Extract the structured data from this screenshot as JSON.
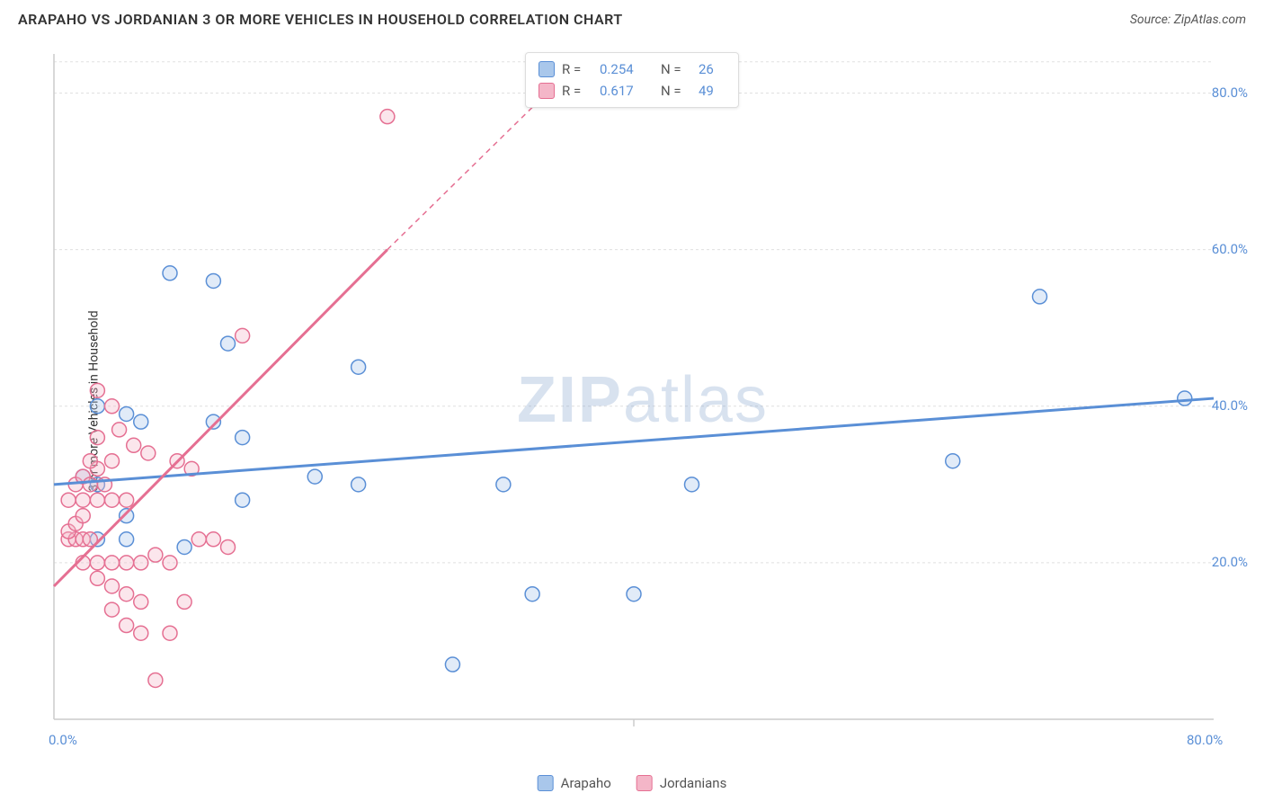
{
  "title": "ARAPAHO VS JORDANIAN 3 OR MORE VEHICLES IN HOUSEHOLD CORRELATION CHART",
  "source": "Source: ZipAtlas.com",
  "y_axis_label": "3 or more Vehicles in Household",
  "watermark_a": "ZIP",
  "watermark_b": "atlas",
  "chart": {
    "type": "scatter",
    "xlim": [
      0,
      80
    ],
    "ylim": [
      0,
      85
    ],
    "x_ticks": [
      0,
      80
    ],
    "x_tick_labels": [
      "0.0%",
      "80.0%"
    ],
    "y_ticks": [
      20,
      40,
      60,
      80
    ],
    "y_tick_labels": [
      "20.0%",
      "40.0%",
      "60.0%",
      "80.0%"
    ],
    "x_minor_tick": 40,
    "grid_color": "#e0e0e0",
    "axis_color": "#cccccc",
    "background_color": "#ffffff",
    "marker_radius": 8,
    "marker_stroke_width": 1.5,
    "marker_fill_opacity": 0.35,
    "trend_line_width": 3,
    "trend_dash": "6 5",
    "series": [
      {
        "name": "Arapaho",
        "color_stroke": "#5a8fd6",
        "color_fill": "#a9c7eb",
        "R": "0.254",
        "N": "26",
        "trend": {
          "x1": 0,
          "y1": 30,
          "x2": 80,
          "y2": 41
        },
        "points": [
          [
            3,
            30
          ],
          [
            5,
            26
          ],
          [
            8,
            57
          ],
          [
            11,
            56
          ],
          [
            5,
            39
          ],
          [
            6,
            38
          ],
          [
            12,
            48
          ],
          [
            11,
            38
          ],
          [
            13,
            36
          ],
          [
            13,
            28
          ],
          [
            5,
            23
          ],
          [
            3,
            23
          ],
          [
            9,
            22
          ],
          [
            18,
            31
          ],
          [
            21,
            45
          ],
          [
            21,
            30
          ],
          [
            31,
            30
          ],
          [
            33,
            16
          ],
          [
            27.5,
            7
          ],
          [
            40,
            16
          ],
          [
            44,
            30
          ],
          [
            62,
            33
          ],
          [
            68,
            54
          ],
          [
            78,
            41
          ],
          [
            3,
            40
          ],
          [
            2,
            31
          ]
        ]
      },
      {
        "name": "Jordanians",
        "color_stroke": "#e56f92",
        "color_fill": "#f4b6c8",
        "R": "0.617",
        "N": "49",
        "trend": {
          "x1": 0,
          "y1": 17,
          "x2": 23,
          "y2": 60
        },
        "trend_extend": {
          "x1": 23,
          "y1": 60,
          "x2": 34,
          "y2": 80
        },
        "points": [
          [
            1,
            23
          ],
          [
            1.5,
            23
          ],
          [
            2,
            23
          ],
          [
            2.5,
            23
          ],
          [
            1,
            24
          ],
          [
            1.5,
            25
          ],
          [
            2,
            26
          ],
          [
            1,
            28
          ],
          [
            2,
            28
          ],
          [
            1.5,
            30
          ],
          [
            2,
            31
          ],
          [
            2.5,
            30
          ],
          [
            3,
            32
          ],
          [
            3.5,
            30
          ],
          [
            4,
            33
          ],
          [
            3,
            28
          ],
          [
            4,
            28
          ],
          [
            5,
            28
          ],
          [
            3,
            36
          ],
          [
            4,
            40
          ],
          [
            2,
            20
          ],
          [
            3,
            20
          ],
          [
            4,
            20
          ],
          [
            5,
            20
          ],
          [
            6,
            20
          ],
          [
            7,
            21
          ],
          [
            8,
            20
          ],
          [
            3,
            18
          ],
          [
            4,
            17
          ],
          [
            5,
            16
          ],
          [
            6,
            15
          ],
          [
            4,
            14
          ],
          [
            5,
            12
          ],
          [
            6,
            11
          ],
          [
            8,
            11
          ],
          [
            7,
            5
          ],
          [
            9,
            15
          ],
          [
            10,
            23
          ],
          [
            11,
            23
          ],
          [
            12,
            22
          ],
          [
            13,
            49
          ],
          [
            3,
            42
          ],
          [
            4.5,
            37
          ],
          [
            5.5,
            35
          ],
          [
            6.5,
            34
          ],
          [
            8.5,
            33
          ],
          [
            9.5,
            32
          ],
          [
            23,
            77
          ],
          [
            2.5,
            33
          ]
        ]
      }
    ]
  },
  "legend_bottom": [
    {
      "label": "Arapaho",
      "fill": "#a9c7eb",
      "stroke": "#5a8fd6"
    },
    {
      "label": "Jordanians",
      "fill": "#f4b6c8",
      "stroke": "#e56f92"
    }
  ]
}
